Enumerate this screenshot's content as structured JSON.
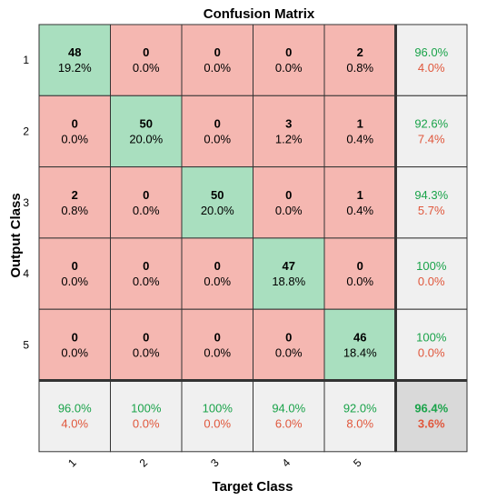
{
  "chart_data": {
    "type": "heatmap",
    "title": "Confusion Matrix",
    "xlabel": "Target Class",
    "ylabel": "Output Class",
    "x_tick_labels": [
      "1",
      "2",
      "3",
      "4",
      "5"
    ],
    "y_tick_labels": [
      "1",
      "2",
      "3",
      "4",
      "5"
    ],
    "matrix": [
      [
        48,
        0,
        0,
        0,
        2
      ],
      [
        0,
        50,
        0,
        3,
        1
      ],
      [
        2,
        0,
        50,
        0,
        1
      ],
      [
        0,
        0,
        0,
        47,
        0
      ],
      [
        0,
        0,
        0,
        0,
        46
      ]
    ],
    "matrix_percent": [
      [
        "19.2%",
        "0.0%",
        "0.0%",
        "0.0%",
        "0.8%"
      ],
      [
        "0.0%",
        "20.0%",
        "0.0%",
        "1.2%",
        "0.4%"
      ],
      [
        "0.8%",
        "0.0%",
        "20.0%",
        "0.0%",
        "0.4%"
      ],
      [
        "0.0%",
        "0.0%",
        "0.0%",
        "18.8%",
        "0.0%"
      ],
      [
        "0.0%",
        "0.0%",
        "0.0%",
        "0.0%",
        "18.4%"
      ]
    ],
    "row_summary": [
      {
        "correct": "96.0%",
        "error": "4.0%"
      },
      {
        "correct": "92.6%",
        "error": "7.4%"
      },
      {
        "correct": "94.3%",
        "error": "5.7%"
      },
      {
        "correct": "100%",
        "error": "0.0%"
      },
      {
        "correct": "100%",
        "error": "0.0%"
      }
    ],
    "col_summary": [
      {
        "correct": "96.0%",
        "error": "4.0%"
      },
      {
        "correct": "100%",
        "error": "0.0%"
      },
      {
        "correct": "100%",
        "error": "0.0%"
      },
      {
        "correct": "94.0%",
        "error": "6.0%"
      },
      {
        "correct": "92.0%",
        "error": "8.0%"
      }
    ],
    "overall": {
      "correct": "96.4%",
      "error": "3.6%"
    },
    "colors": {
      "diagonal": "#a9dfbf",
      "off_diagonal": "#f5b7b1",
      "summary": "#f0f0f0",
      "overall": "#d9d9d9",
      "correct_text": "#1aa34a",
      "error_text": "#e0573c",
      "grid": "#333333"
    }
  }
}
